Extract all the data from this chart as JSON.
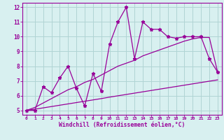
{
  "x_data": [
    0,
    1,
    2,
    3,
    4,
    5,
    6,
    7,
    8,
    9,
    10,
    11,
    12,
    13,
    14,
    15,
    16,
    17,
    18,
    19,
    20,
    21,
    22,
    23
  ],
  "y_main": [
    5.0,
    5.0,
    6.6,
    6.2,
    7.2,
    8.0,
    6.5,
    5.3,
    7.5,
    6.3,
    9.5,
    11.0,
    12.0,
    8.5,
    11.0,
    10.5,
    10.5,
    10.0,
    9.9,
    10.0,
    10.0,
    10.0,
    8.5,
    7.6
  ],
  "y_line1": [
    5.0,
    5.2,
    5.5,
    5.8,
    6.1,
    6.4,
    6.6,
    6.9,
    7.1,
    7.4,
    7.7,
    8.0,
    8.2,
    8.4,
    8.7,
    8.9,
    9.1,
    9.3,
    9.5,
    9.7,
    9.85,
    9.95,
    9.95,
    7.6
  ],
  "y_line2": [
    5.0,
    5.08,
    5.17,
    5.26,
    5.35,
    5.44,
    5.53,
    5.62,
    5.71,
    5.8,
    5.9,
    5.99,
    6.08,
    6.17,
    6.26,
    6.35,
    6.44,
    6.53,
    6.62,
    6.71,
    6.8,
    6.89,
    6.98,
    7.07
  ],
  "line_color": "#990099",
  "bg_color": "#d8f0f0",
  "grid_color": "#b0d4d4",
  "xlabel": "Windchill (Refroidissement éolien,°C)",
  "xlim": [
    -0.5,
    23.5
  ],
  "ylim": [
    4.7,
    12.3
  ],
  "yticks": [
    5,
    6,
    7,
    8,
    9,
    10,
    11,
    12
  ],
  "xticks": [
    0,
    1,
    2,
    3,
    4,
    5,
    6,
    7,
    8,
    9,
    10,
    11,
    12,
    13,
    14,
    15,
    16,
    17,
    18,
    19,
    20,
    21,
    22,
    23
  ]
}
